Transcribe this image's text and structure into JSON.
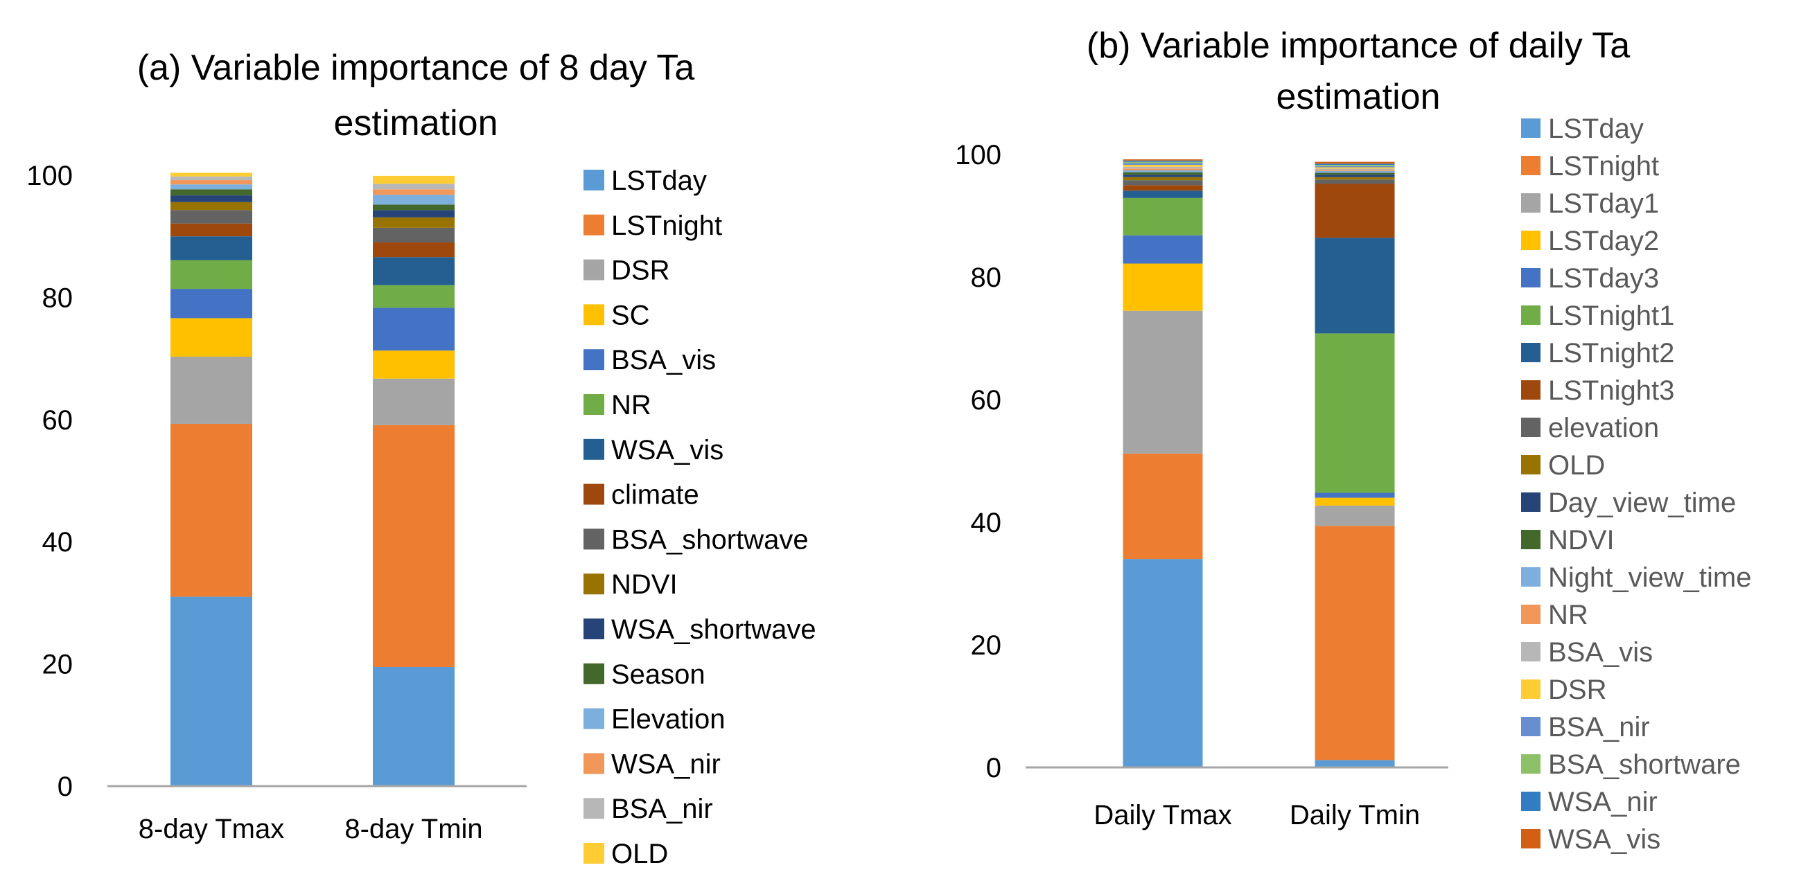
{
  "chart_data": [
    {
      "type": "bar",
      "stacked": true,
      "title_lines": [
        "(a) Variable importance of 8 day Ta",
        "estimation"
      ],
      "categories": [
        "8-day Tmax",
        "8-day Tmin"
      ],
      "ylim": [
        0,
        100
      ],
      "yticks": [
        0,
        20,
        40,
        60,
        80,
        100
      ],
      "grid": false,
      "legend_position": "right",
      "series": [
        {
          "name": "LSTday",
          "color": "#5B9BD5",
          "values": [
            31,
            19.5
          ]
        },
        {
          "name": "LSTnight",
          "color": "#ED7D31",
          "values": [
            28.3,
            39.6
          ]
        },
        {
          "name": "DSR",
          "color": "#A5A5A5",
          "values": [
            11,
            7.6
          ]
        },
        {
          "name": "SC",
          "color": "#FFC000",
          "values": [
            6.3,
            4.6
          ]
        },
        {
          "name": "BSA_vis",
          "color": "#4472C4",
          "values": [
            4.8,
            7
          ]
        },
        {
          "name": "NR",
          "color": "#70AD47",
          "values": [
            4.7,
            3.7
          ]
        },
        {
          "name": "WSA_vis",
          "color": "#255E91",
          "values": [
            3.9,
            4.6
          ]
        },
        {
          "name": "climate",
          "color": "#9E480E",
          "values": [
            2.1,
            2.4
          ]
        },
        {
          "name": "BSA_shortwave",
          "color": "#636363",
          "values": [
            2.2,
            2.4
          ]
        },
        {
          "name": "NDVI",
          "color": "#997300",
          "values": [
            1.3,
            1.7
          ]
        },
        {
          "name": "WSA_shortwave",
          "color": "#264478",
          "values": [
            1.1,
            1.2
          ]
        },
        {
          "name": "Season",
          "color": "#43682B",
          "values": [
            1,
            0.9
          ]
        },
        {
          "name": "Elevation",
          "color": "#7CAFDD",
          "values": [
            0.8,
            1.6
          ]
        },
        {
          "name": "WSA_nir",
          "color": "#F1975A",
          "values": [
            0.7,
            0.9
          ]
        },
        {
          "name": "BSA_nir",
          "color": "#B7B7B7",
          "values": [
            0.6,
            0.9
          ]
        },
        {
          "name": "OLD",
          "color": "#FFCD33",
          "values": [
            0.6,
            1.3
          ]
        }
      ]
    },
    {
      "type": "bar",
      "stacked": true,
      "title_lines": [
        "(b) Variable importance of daily Ta",
        "estimation"
      ],
      "categories": [
        "Daily Tmax",
        "Daily Tmin"
      ],
      "ylim": [
        0,
        100
      ],
      "yticks": [
        0,
        20,
        40,
        60,
        80,
        100
      ],
      "grid": false,
      "legend_position": "right",
      "series": [
        {
          "name": "LSTday",
          "color": "#5B9BD5",
          "values": [
            34,
            1.2
          ]
        },
        {
          "name": "LSTnight",
          "color": "#ED7D31",
          "values": [
            17.2,
            38.2
          ]
        },
        {
          "name": "LSTday1",
          "color": "#A5A5A5",
          "values": [
            23.3,
            3.3
          ]
        },
        {
          "name": "LSTday2",
          "color": "#FFC000",
          "values": [
            7.7,
            1.3
          ]
        },
        {
          "name": "LSTday3",
          "color": "#4472C4",
          "values": [
            4.6,
            0.8
          ]
        },
        {
          "name": "LSTnight1",
          "color": "#70AD47",
          "values": [
            6.1,
            26
          ]
        },
        {
          "name": "LSTnight2",
          "color": "#255E91",
          "values": [
            1.2,
            15.6
          ]
        },
        {
          "name": "LSTnight3",
          "color": "#9E480E",
          "values": [
            0.9,
            8.8
          ]
        },
        {
          "name": "elevation",
          "color": "#636363",
          "values": [
            0.8,
            0.7
          ]
        },
        {
          "name": "OLD",
          "color": "#997300",
          "values": [
            0.5,
            0.4
          ]
        },
        {
          "name": "Day_view_time",
          "color": "#264478",
          "values": [
            0.4,
            0.4
          ]
        },
        {
          "name": "NDVI",
          "color": "#43682B",
          "values": [
            0.4,
            0.3
          ]
        },
        {
          "name": "Night_view_time",
          "color": "#7CAFDD",
          "values": [
            0.3,
            0.3
          ]
        },
        {
          "name": "NR",
          "color": "#F1975A",
          "values": [
            0.3,
            0.2
          ]
        },
        {
          "name": "BSA_vis",
          "color": "#B7B7B7",
          "values": [
            0.3,
            0.2
          ]
        },
        {
          "name": "DSR",
          "color": "#FFCD33",
          "values": [
            0.3,
            0.2
          ]
        },
        {
          "name": "BSA_nir",
          "color": "#698ED0",
          "values": [
            0.3,
            0.2
          ]
        },
        {
          "name": "BSA_shortware",
          "color": "#8CC168",
          "values": [
            0.2,
            0.2
          ]
        },
        {
          "name": "WSA_nir",
          "color": "#327DC2",
          "values": [
            0.2,
            0.2
          ]
        },
        {
          "name": "WSA_vis",
          "color": "#D26012",
          "values": [
            0.2,
            0.3
          ]
        }
      ]
    }
  ]
}
